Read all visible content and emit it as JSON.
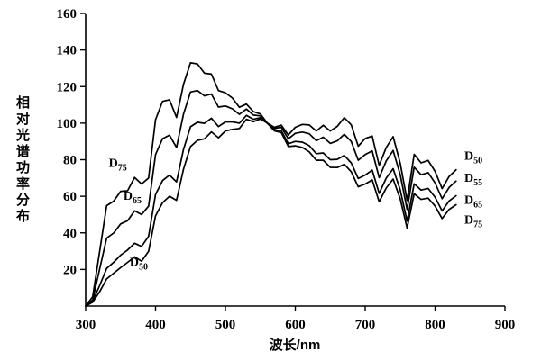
{
  "figure": {
    "background": "#ffffff",
    "line_color": "#000000",
    "text_color": "#000000"
  },
  "chart_data": {
    "type": "line",
    "title": "",
    "xlabel": "波长/nm",
    "ylabel": "相对光谱功率分布",
    "xlim": [
      300,
      900
    ],
    "ylim": [
      0,
      160
    ],
    "xticks": [
      300,
      400,
      500,
      600,
      700,
      800,
      900
    ],
    "yticks": [
      20,
      40,
      60,
      80,
      100,
      120,
      140,
      160
    ],
    "grid": false,
    "legend_position": "inline-annotations",
    "x": [
      300,
      310,
      320,
      330,
      340,
      350,
      360,
      370,
      380,
      390,
      400,
      410,
      420,
      430,
      440,
      450,
      460,
      470,
      480,
      490,
      500,
      510,
      520,
      530,
      540,
      550,
      560,
      570,
      580,
      590,
      600,
      610,
      620,
      630,
      640,
      650,
      660,
      670,
      680,
      690,
      700,
      710,
      720,
      730,
      740,
      750,
      760,
      770,
      780,
      790,
      800,
      810,
      820,
      830
    ],
    "series": [
      {
        "name": "D75",
        "values": [
          0.0,
          5.1,
          29.8,
          54.9,
          57.3,
          62.7,
          63.0,
          70.3,
          66.7,
          70.0,
          101.9,
          111.9,
          112.8,
          103.1,
          121.2,
          133.0,
          132.4,
          127.3,
          126.8,
          117.8,
          116.6,
          113.7,
          108.7,
          110.4,
          106.3,
          105.0,
          100.0,
          95.8,
          94.8,
          87.2,
          87.6,
          86.7,
          84.3,
          79.7,
          79.7,
          75.8,
          75.7,
          77.5,
          73.4,
          65.2,
          66.7,
          68.9,
          57.0,
          64.5,
          69.4,
          58.7,
          42.6,
          61.4,
          58.3,
          59.0,
          54.7,
          47.8,
          52.8,
          55.4
        ]
      },
      {
        "name": "D65",
        "values": [
          0.0,
          3.3,
          20.2,
          37.1,
          39.9,
          44.9,
          46.6,
          52.1,
          50.0,
          54.6,
          82.8,
          91.5,
          93.4,
          86.7,
          104.9,
          117.0,
          117.8,
          114.9,
          115.9,
          108.8,
          109.4,
          107.8,
          104.8,
          107.7,
          104.4,
          104.0,
          100.0,
          96.3,
          95.8,
          88.7,
          90.0,
          89.6,
          87.7,
          83.3,
          83.7,
          80.0,
          80.2,
          82.3,
          78.3,
          69.7,
          71.6,
          74.3,
          61.6,
          69.9,
          75.1,
          63.6,
          46.4,
          66.8,
          63.4,
          64.3,
          59.5,
          52.0,
          57.4,
          60.3
        ]
      },
      {
        "name": "D55",
        "values": [
          0.0,
          2.6,
          11.2,
          20.6,
          23.9,
          27.8,
          30.6,
          34.3,
          32.6,
          38.1,
          61.0,
          68.6,
          71.6,
          67.9,
          85.6,
          98.0,
          100.5,
          99.9,
          102.7,
          98.1,
          100.7,
          100.7,
          100.0,
          104.2,
          102.1,
          103.0,
          100.0,
          97.2,
          97.7,
          91.4,
          94.4,
          95.1,
          94.2,
          90.4,
          92.3,
          88.9,
          90.3,
          93.9,
          90.0,
          79.7,
          82.8,
          84.8,
          70.2,
          79.3,
          85.0,
          71.9,
          52.8,
          75.9,
          71.8,
          72.9,
          67.3,
          58.7,
          64.8,
          68.3
        ]
      },
      {
        "name": "D50",
        "values": [
          0.0,
          2.1,
          7.8,
          14.8,
          17.9,
          21.0,
          23.9,
          26.9,
          24.5,
          29.9,
          49.3,
          56.5,
          60.0,
          57.8,
          74.8,
          87.2,
          90.6,
          91.4,
          95.2,
          92.0,
          95.7,
          96.6,
          97.1,
          102.1,
          100.8,
          102.3,
          100.0,
          97.7,
          98.9,
          93.5,
          97.7,
          99.3,
          99.0,
          95.7,
          98.8,
          95.7,
          98.2,
          103.0,
          99.1,
          87.4,
          91.6,
          92.9,
          76.9,
          86.6,
          92.6,
          78.2,
          57.7,
          82.9,
          78.3,
          79.6,
          73.6,
          64.2,
          70.8,
          74.5
        ]
      }
    ],
    "annotations": [
      {
        "text": "D",
        "sub": "75",
        "x": 333,
        "y": 76,
        "side": "left"
      },
      {
        "text": "D",
        "sub": "65",
        "x": 354,
        "y": 58,
        "side": "left"
      },
      {
        "text": "D",
        "sub": "50",
        "x": 363,
        "y": 22,
        "side": "left"
      },
      {
        "text": "D",
        "sub": "50",
        "x": 842,
        "y": 80,
        "side": "right"
      },
      {
        "text": "D",
        "sub": "55",
        "x": 842,
        "y": 68,
        "side": "right"
      },
      {
        "text": "D",
        "sub": "65",
        "x": 842,
        "y": 56,
        "side": "right"
      },
      {
        "text": "D",
        "sub": "75",
        "x": 842,
        "y": 45,
        "side": "right"
      }
    ]
  }
}
